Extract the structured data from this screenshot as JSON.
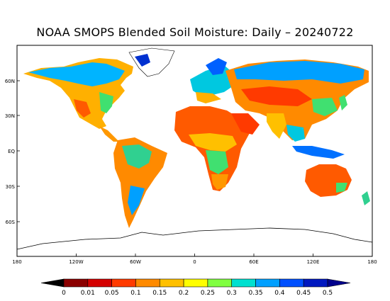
{
  "title": "NOAA SMOPS Blended Soil Moisture: Daily – 20240722",
  "lat_ticks": [
    "60N",
    "30N",
    "EQ",
    "30S",
    "60S"
  ],
  "lon_ticks": [
    "180",
    "120W",
    "60W",
    "0",
    "60E",
    "120E",
    "180"
  ],
  "colorbar": {
    "labels": [
      "0",
      "0.01",
      "0.05",
      "0.1",
      "0.15",
      "0.2",
      "0.25",
      "0.3",
      "0.35",
      "0.4",
      "0.45",
      "0.5"
    ],
    "colors": [
      "#000000",
      "#8b0000",
      "#d40000",
      "#ff3a00",
      "#ff8a00",
      "#ffc000",
      "#ffff00",
      "#80ff40",
      "#00e0d0",
      "#00a0ff",
      "#0050ff",
      "#0018c0",
      "#00008c"
    ]
  }
}
